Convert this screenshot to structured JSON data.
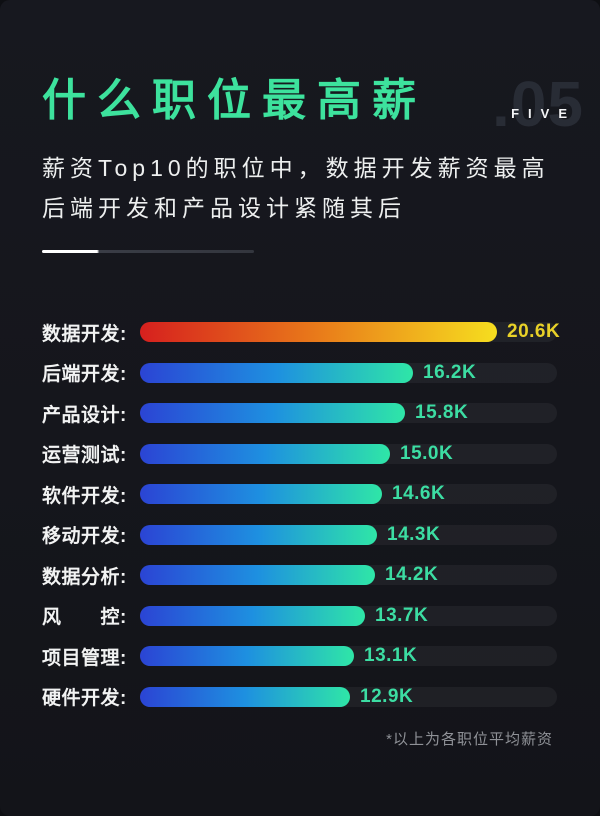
{
  "header": {
    "title": "什么职位最高薪",
    "page_number": ".05",
    "page_number_word": "FIVE",
    "subtitle_line1": "薪资Top10的职位中，数据开发薪资最高",
    "subtitle_line2": "后端开发和产品设计紧随其后"
  },
  "chart_data": {
    "type": "bar",
    "orientation": "horizontal",
    "title": "什么职位最高薪",
    "categories": [
      "数据开发",
      "后端开发",
      "产品设计",
      "运营测试",
      "软件开发",
      "移动开发",
      "数据分析",
      "风控",
      "项目管理",
      "硬件开发"
    ],
    "display_labels": [
      "数据开发:",
      "后端开发:",
      "产品设计:",
      "运营测试:",
      "软件开发:",
      "移动开发:",
      "数据分析:",
      "风　　控:",
      "项目管理:",
      "硬件开发:"
    ],
    "values": [
      20.6,
      16.2,
      15.8,
      15.0,
      14.6,
      14.3,
      14.2,
      13.7,
      13.1,
      12.9
    ],
    "value_labels": [
      "20.6K",
      "16.2K",
      "15.8K",
      "15.0K",
      "14.6K",
      "14.3K",
      "14.2K",
      "13.7K",
      "13.1K",
      "12.9K"
    ],
    "unit": "K",
    "xlim": [
      0,
      20.6
    ],
    "grid": false,
    "legend": false,
    "colors": {
      "top_bar_gradient": [
        "#d6201e",
        "#e97b1a",
        "#f6de1f"
      ],
      "bar_gradient": [
        "#2b44d4",
        "#1e90e0",
        "#2fe6a7"
      ],
      "top_value_color": "#e8d128",
      "value_color": "#3cdda3",
      "label_color": "#f2f3f3",
      "track_color": "rgba(255,255,255,0.05)"
    }
  },
  "footer": {
    "note": "*以上为各职位平均薪资"
  },
  "theme": {
    "background": "#16171d",
    "accent": "#3de29d"
  }
}
